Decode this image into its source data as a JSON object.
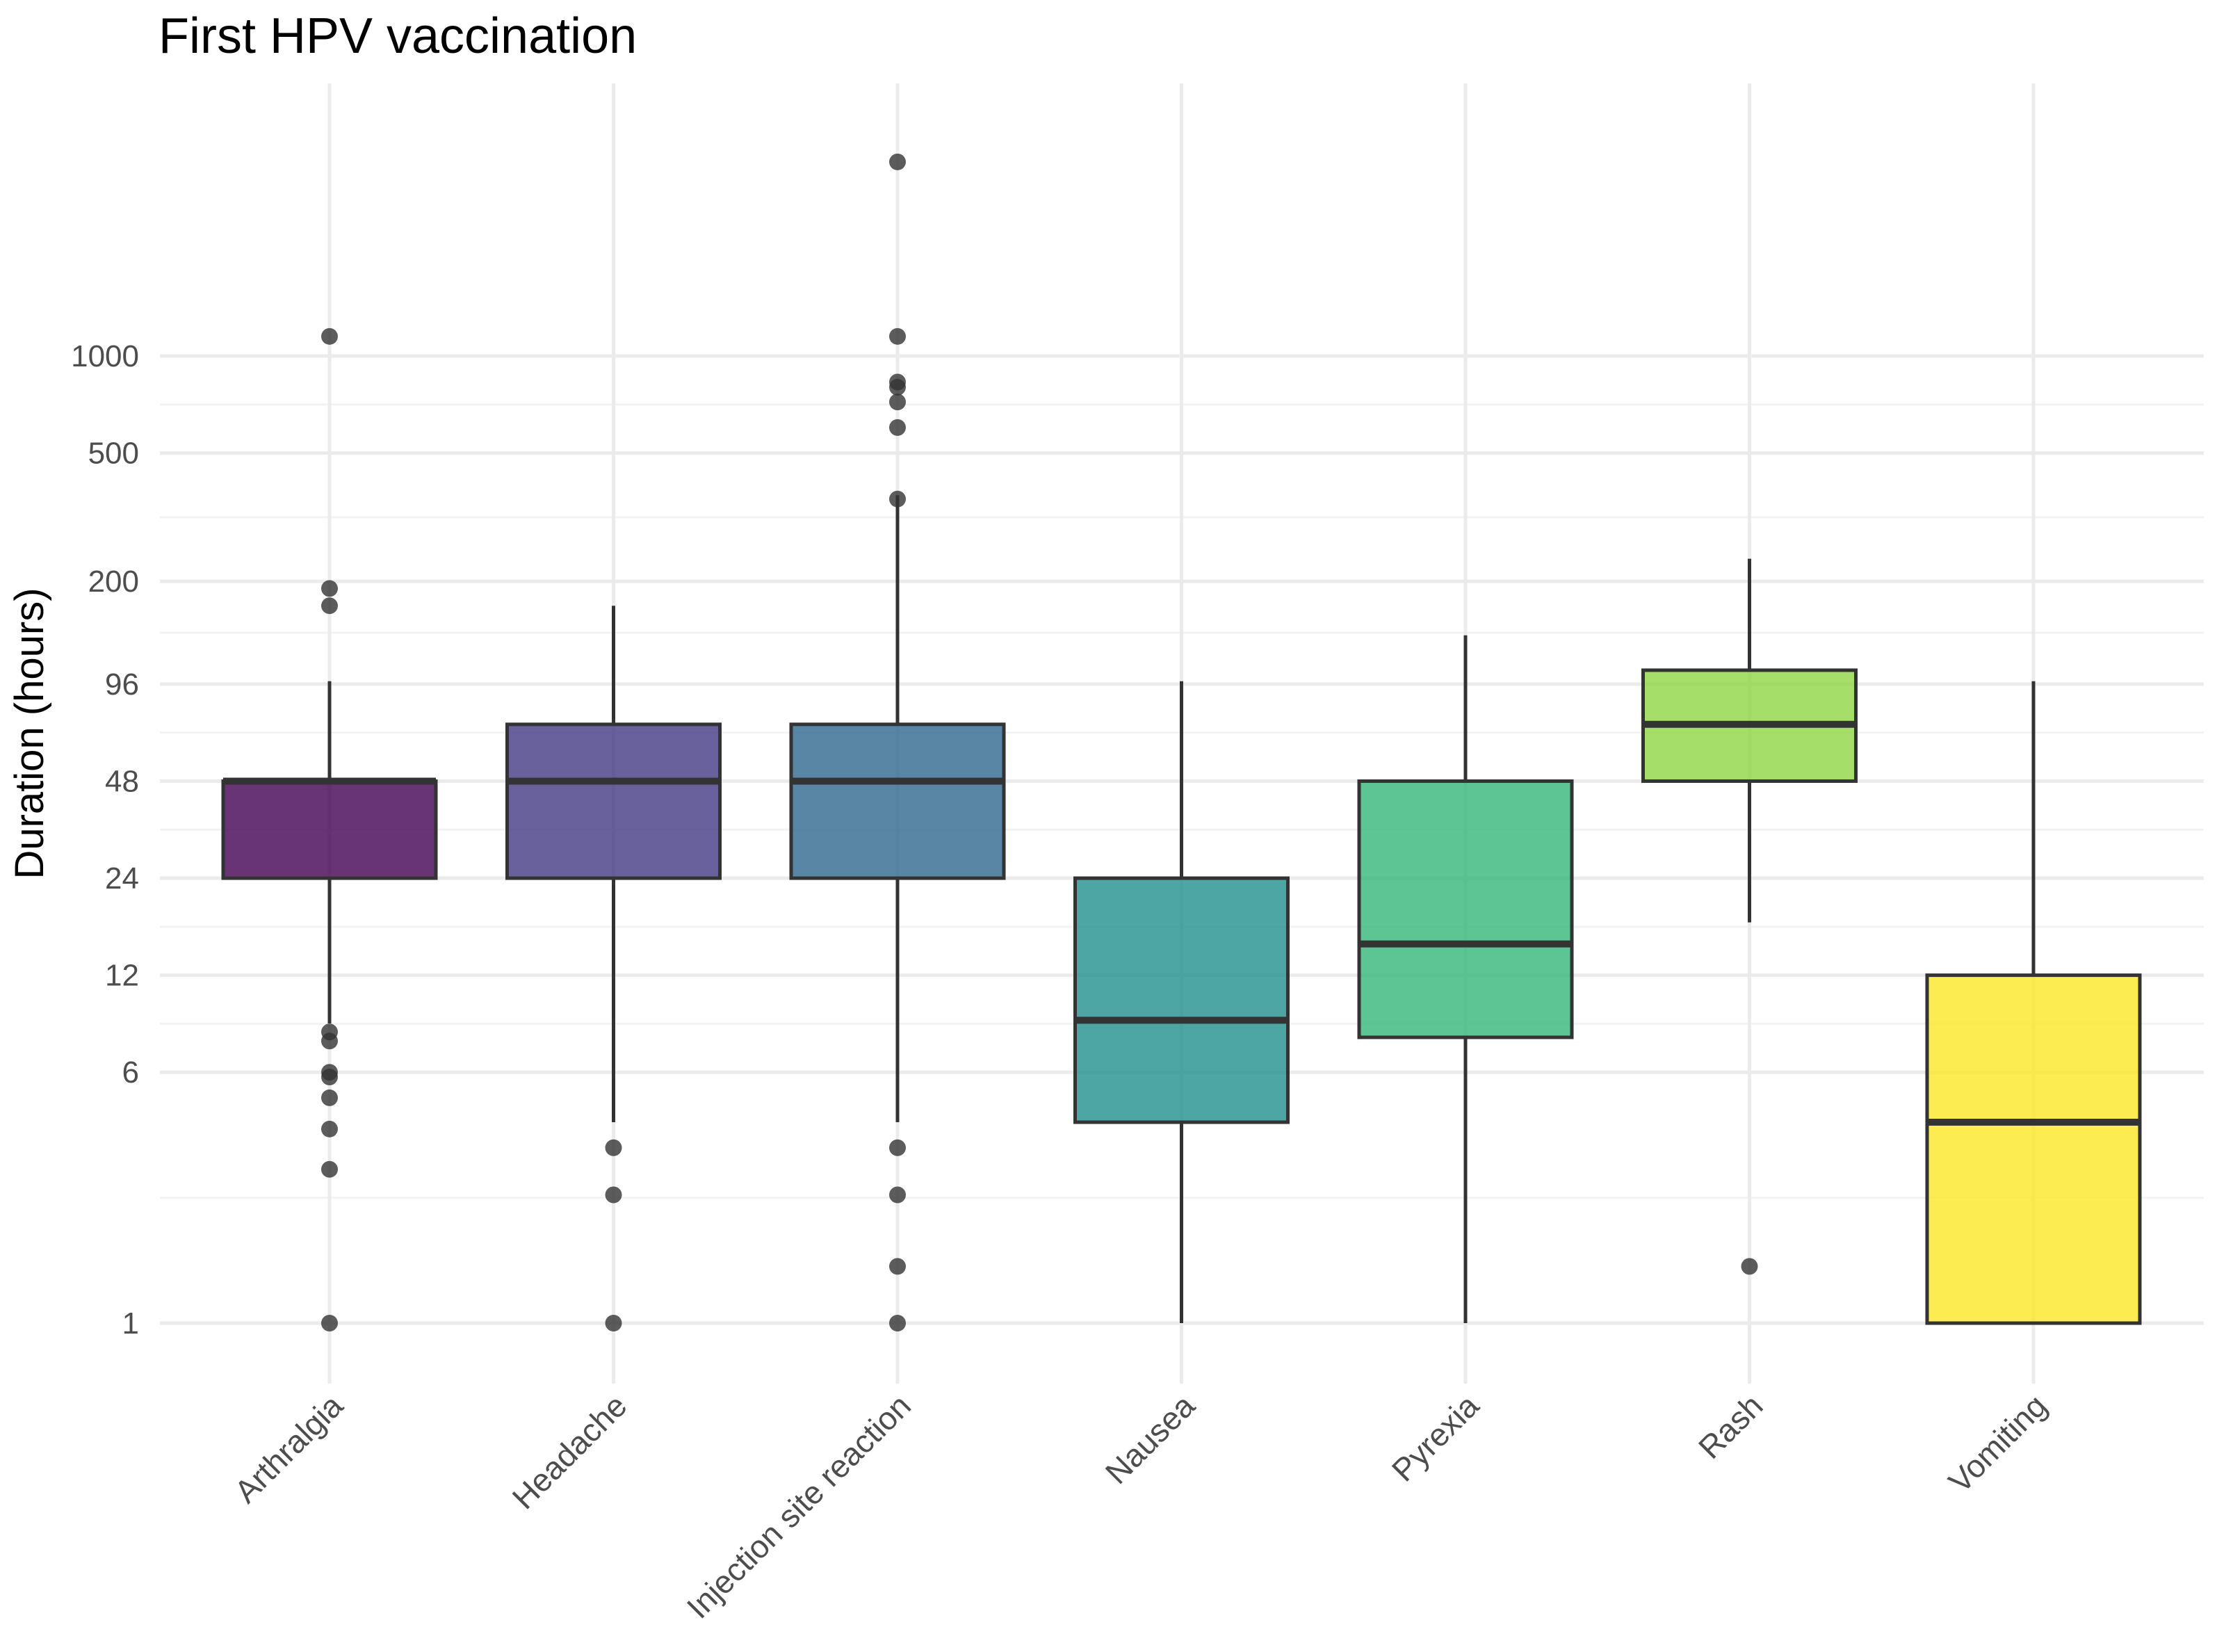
{
  "chart_data": {
    "type": "box",
    "title": "First HPV vaccination",
    "xlabel": "",
    "ylabel": "Duration (hours)",
    "yscale": "log",
    "ylim": [
      0.8,
      4800
    ],
    "yticks": [
      1,
      6,
      12,
      24,
      48,
      96,
      200,
      500,
      1000
    ],
    "ytick_labels": [
      "1",
      "6",
      "12",
      "24",
      "48",
      "96",
      "200",
      "500",
      "1000"
    ],
    "grid": true,
    "legend": "none",
    "categories": [
      "Arthralgia",
      "Headache",
      "Injection site reaction",
      "Nausea",
      "Pyrexia",
      "Rash",
      "Vomiting"
    ],
    "boxes": [
      {
        "category": "Arthralgia",
        "color": "#440154",
        "q1": 24,
        "median": 48,
        "q3": 48,
        "whisker_low": 8.5,
        "whisker_high": 98,
        "outliers": [
          1,
          3,
          4,
          5,
          5.8,
          6,
          7.5,
          8,
          168,
          190,
          1150
        ]
      },
      {
        "category": "Headache",
        "color": "#443A83",
        "q1": 24,
        "median": 48,
        "q3": 72,
        "whisker_low": 4.2,
        "whisker_high": 168,
        "outliers": [
          1,
          2.5,
          3.5
        ]
      },
      {
        "category": "Injection site reaction",
        "color": "#31688E",
        "q1": 24,
        "median": 48,
        "q3": 72,
        "whisker_low": 4.2,
        "whisker_high": 370,
        "outliers": [
          1,
          1.5,
          2.5,
          3.5,
          360,
          600,
          720,
          800,
          830,
          1150,
          4000
        ]
      },
      {
        "category": "Nausea",
        "color": "#21908C",
        "q1": 4.2,
        "median": 8.7,
        "q3": 24,
        "whisker_low": 1,
        "whisker_high": 98
      },
      {
        "category": "Pyrexia",
        "color": "#35B779",
        "q1": 7.7,
        "median": 15,
        "q3": 48,
        "whisker_low": 1,
        "whisker_high": 136
      },
      {
        "category": "Rash",
        "color": "#8FD744",
        "q1": 48,
        "median": 72,
        "q3": 106,
        "whisker_low": 17.5,
        "whisker_high": 235,
        "outliers": [
          1.5
        ]
      },
      {
        "category": "Vomiting",
        "color": "#FDE725",
        "q1": 1,
        "median": 4.2,
        "q3": 12,
        "whisker_low": 1,
        "whisker_high": 98
      }
    ]
  }
}
